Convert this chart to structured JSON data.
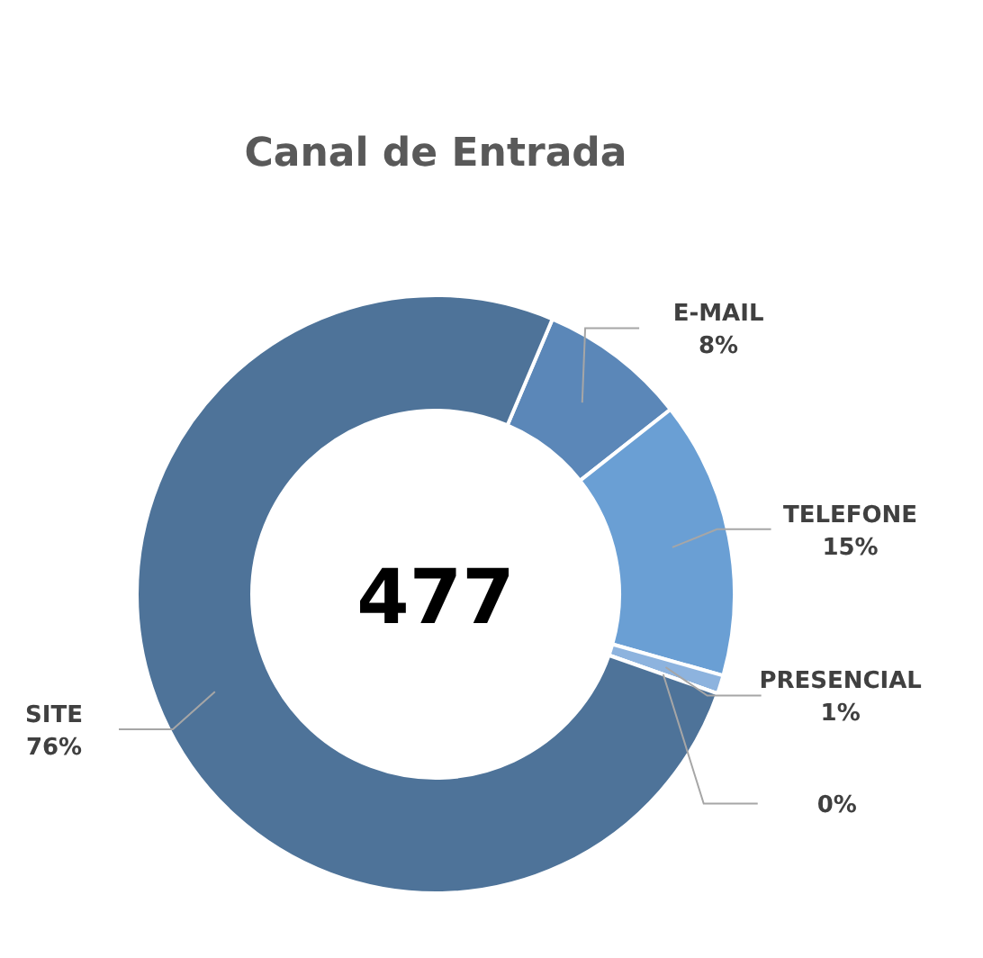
{
  "chart_data": {
    "type": "donut",
    "title": "Canal de Entrada",
    "categories": [
      "E-MAIL",
      "TELEFONE",
      "PRESENCIAL",
      null,
      "SITE"
    ],
    "values": [
      8,
      15,
      1,
      0,
      76
    ],
    "colors": [
      "#5b87b8",
      "#6a9fd4",
      "#8db3de",
      "#c9d9ee",
      "#4e7399"
    ],
    "value_labels": [
      "8%",
      "15%",
      "1%",
      "0%",
      "76%"
    ],
    "annotations": [
      "477"
    ]
  }
}
